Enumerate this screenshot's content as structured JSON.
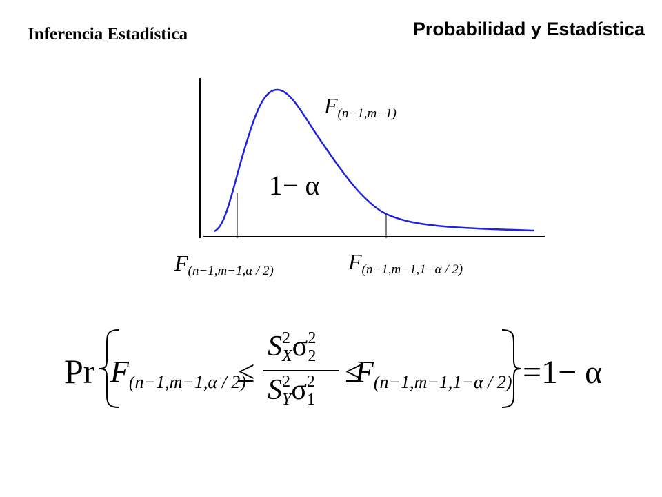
{
  "header": {
    "subtitle": "Inferencia Estadística",
    "title": "Probabilidad y Estadística"
  },
  "diagram": {
    "curve_label": {
      "main": "F",
      "sub": "(n−1,m−1)"
    },
    "area_label": "1− α",
    "lower_quantile": {
      "main": "F",
      "sub": "(n−1,m−1,α / 2)"
    },
    "upper_quantile": {
      "main": "F",
      "sub": "(n−1,m−1,1−α / 2)"
    }
  },
  "formula": {
    "prefix": "Pr",
    "lower": {
      "main": "F",
      "sub": "(n−1,m−1,α / 2)"
    },
    "le_left": "≤",
    "numerator": {
      "s": "S",
      "s_sub": "X",
      "s_sup": "2",
      "sigma": "σ",
      "sigma_sub": "2",
      "sigma_sup": "2"
    },
    "denominator": {
      "s": "S",
      "s_sub": "Y",
      "s_sup": "2",
      "sigma": "σ",
      "sigma_sub": "1",
      "sigma_sup": "2"
    },
    "le_right": "≤",
    "upper": {
      "main": "F",
      "sub": "(n−1,m−1,1−α / 2)"
    },
    "result": "=1− α"
  }
}
